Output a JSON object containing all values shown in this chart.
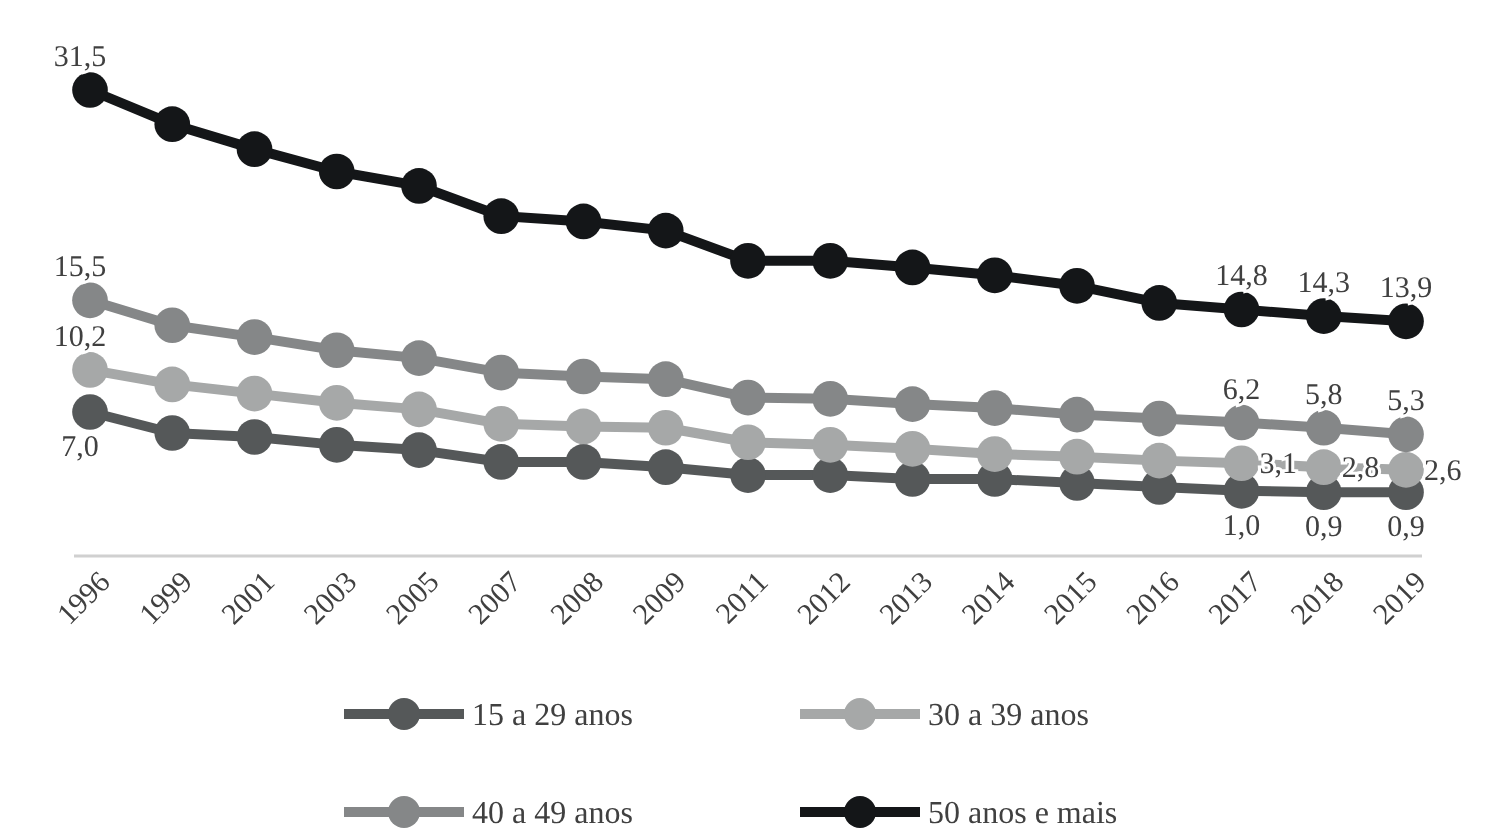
{
  "chart_data": {
    "type": "line",
    "categories": [
      "1996",
      "1999",
      "2001",
      "2003",
      "2005",
      "2007",
      "2008",
      "2009",
      "2011",
      "2012",
      "2013",
      "2014",
      "2015",
      "2016",
      "2017",
      "2018",
      "2019"
    ],
    "tick_labels": "x",
    "grid": false,
    "legend": "bottom",
    "marker": "circle",
    "line_style": "solid",
    "series": [
      {
        "name": "15 a 29 anos",
        "color": "#555859",
        "values": [
          7.0,
          5.4,
          5.1,
          4.5,
          4.1,
          3.2,
          3.2,
          2.8,
          2.2,
          2.2,
          1.9,
          1.9,
          1.6,
          1.3,
          1.0,
          0.9,
          0.9
        ],
        "value_labels": [
          "7,0",
          null,
          null,
          null,
          null,
          null,
          null,
          null,
          null,
          null,
          null,
          null,
          null,
          null,
          "1,0",
          "0,9",
          "0,9"
        ]
      },
      {
        "name": "30 a 39 anos",
        "color": "#a6a8a8",
        "values": [
          10.2,
          9.1,
          8.4,
          7.7,
          7.2,
          6.1,
          5.9,
          5.8,
          4.7,
          4.5,
          4.2,
          3.8,
          3.6,
          3.3,
          3.1,
          2.8,
          2.6
        ],
        "value_labels": [
          "10,2",
          null,
          null,
          null,
          null,
          null,
          null,
          null,
          null,
          null,
          null,
          null,
          null,
          null,
          "3,1",
          "2,8",
          "2,6"
        ]
      },
      {
        "name": "40 a 49 anos",
        "color": "#858788",
        "values": [
          15.5,
          13.6,
          12.7,
          11.7,
          11.1,
          10.0,
          9.7,
          9.5,
          8.1,
          8.0,
          7.6,
          7.3,
          6.8,
          6.5,
          6.2,
          5.8,
          5.3
        ],
        "value_labels": [
          "15,5",
          null,
          null,
          null,
          null,
          null,
          null,
          null,
          null,
          null,
          null,
          null,
          null,
          null,
          "6,2",
          "5,8",
          "5,3"
        ]
      },
      {
        "name": "50 anos e mais",
        "color": "#141618",
        "values": [
          31.5,
          28.9,
          27.0,
          25.3,
          24.2,
          21.9,
          21.5,
          20.8,
          18.5,
          18.5,
          18.0,
          17.4,
          16.6,
          15.3,
          14.8,
          14.3,
          13.9
        ],
        "value_labels": [
          "31,5",
          null,
          null,
          null,
          null,
          null,
          null,
          null,
          null,
          null,
          null,
          null,
          null,
          null,
          "14,8",
          "14,3",
          "13,9"
        ]
      }
    ]
  }
}
